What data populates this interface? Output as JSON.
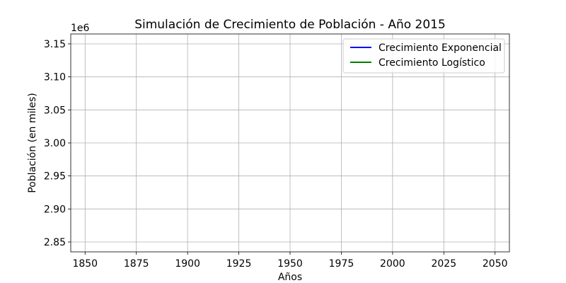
{
  "chart_data": {
    "type": "line",
    "title": "Simulación de Crecimiento de Población - Año 2015",
    "xlabel": "Años",
    "ylabel": "Población (en miles)",
    "offset_text": "1e6",
    "xlim": [
      1843,
      2057
    ],
    "ylim": [
      2835000,
      3165000
    ],
    "xticks": [
      1850,
      1875,
      1900,
      1925,
      1950,
      1975,
      2000,
      2025,
      2050
    ],
    "yticks": [
      2850000,
      2900000,
      2950000,
      3000000,
      3050000,
      3100000,
      3150000
    ],
    "ytick_labels": [
      "2.85",
      "2.90",
      "2.95",
      "3.00",
      "3.05",
      "3.10",
      "3.15"
    ],
    "grid": true,
    "legend_position": "top-right",
    "series": [
      {
        "name": "Crecimiento Exponencial",
        "color": "#0000ff",
        "x": [],
        "y": []
      },
      {
        "name": "Crecimiento Logístico",
        "color": "#008000",
        "x": [],
        "y": []
      }
    ]
  }
}
